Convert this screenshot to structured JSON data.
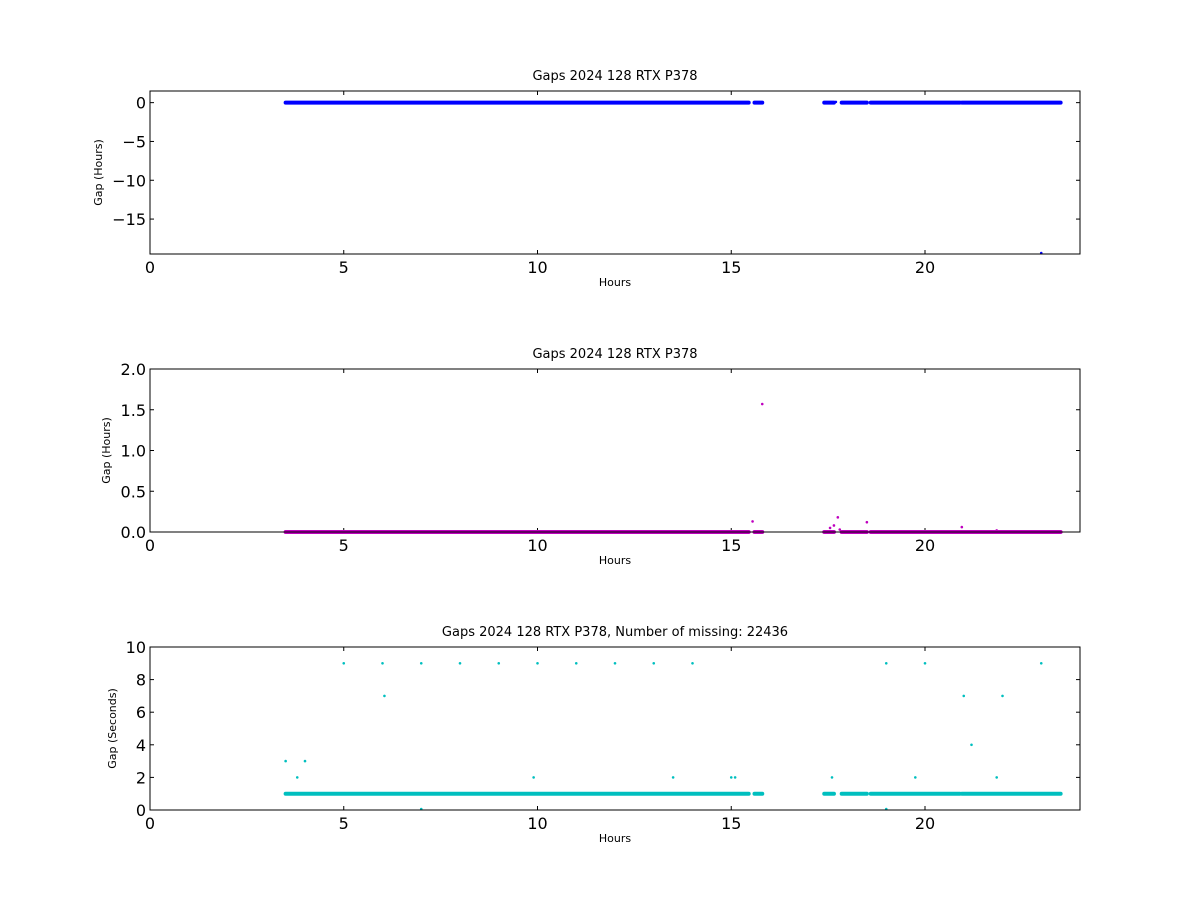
{
  "chart_data": [
    {
      "type": "scatter",
      "title": "Gaps 2024 128 RTX  P378",
      "xlabel": "Hours",
      "ylabel": "Gap (Hours)",
      "xlim": [
        0,
        24
      ],
      "ylim": [
        -19.5,
        1.5
      ],
      "xticks": [
        0,
        5,
        10,
        15,
        20
      ],
      "yticks": [
        0,
        -5,
        -10,
        -15
      ],
      "color": "#0000ff",
      "series": [
        {
          "segments": [
            [
              3.5,
              15.45
            ],
            [
              15.6,
              15.8
            ],
            [
              17.4,
              17.65
            ],
            [
              17.85,
              18.5
            ],
            [
              18.6,
              20.9
            ],
            [
              20.95,
              23.5
            ]
          ],
          "y": 0.0,
          "points": [
            [
              17.7,
              0.1
            ],
            [
              23.0,
              -19.5
            ]
          ]
        }
      ]
    },
    {
      "type": "scatter",
      "title": "Gaps 2024 128 RTX  P378",
      "xlabel": "Hours",
      "ylabel": "Gap (Hours)",
      "xlim": [
        0,
        24
      ],
      "ylim": [
        0.0,
        2.0
      ],
      "xticks": [
        0,
        5,
        10,
        15,
        20
      ],
      "yticks": [
        0.0,
        0.5,
        1.0,
        1.5,
        2.0
      ],
      "color": "#bf00bf",
      "series": [
        {
          "segments": [
            [
              3.5,
              15.45
            ],
            [
              15.6,
              15.8
            ],
            [
              17.4,
              17.65
            ],
            [
              17.85,
              18.5
            ],
            [
              18.6,
              23.5
            ]
          ],
          "y": 0.0,
          "points": [
            [
              15.55,
              0.13
            ],
            [
              15.8,
              1.57
            ],
            [
              17.55,
              0.05
            ],
            [
              17.65,
              0.08
            ],
            [
              17.75,
              0.18
            ],
            [
              17.8,
              0.03
            ],
            [
              18.5,
              0.12
            ],
            [
              20.95,
              0.06
            ],
            [
              21.85,
              0.02
            ]
          ]
        }
      ]
    },
    {
      "type": "scatter",
      "title": "Gaps 2024 128 RTX  P378, Number of missing: 22436",
      "xlabel": "Hours",
      "ylabel": "Gap (Seconds)",
      "xlim": [
        0,
        24
      ],
      "ylim": [
        0,
        10
      ],
      "xticks": [
        0,
        5,
        10,
        15,
        20
      ],
      "yticks": [
        0,
        2,
        4,
        6,
        8,
        10
      ],
      "color": "#00bfbf",
      "series": [
        {
          "segments": [
            [
              3.5,
              15.45
            ],
            [
              15.6,
              15.8
            ],
            [
              17.4,
              17.65
            ],
            [
              17.85,
              18.5
            ],
            [
              18.6,
              20.9
            ],
            [
              20.95,
              23.5
            ]
          ],
          "y": 1,
          "points": [
            [
              3.5,
              3
            ],
            [
              3.8,
              2
            ],
            [
              4.0,
              3
            ],
            [
              5.0,
              9
            ],
            [
              6.0,
              9
            ],
            [
              6.05,
              7
            ],
            [
              7.0,
              9
            ],
            [
              7.0,
              0
            ],
            [
              8.0,
              9
            ],
            [
              9.0,
              9
            ],
            [
              9.9,
              2
            ],
            [
              10.0,
              9
            ],
            [
              11.0,
              9
            ],
            [
              12.0,
              9
            ],
            [
              13.0,
              9
            ],
            [
              13.5,
              2
            ],
            [
              14.0,
              9
            ],
            [
              15.0,
              2
            ],
            [
              15.1,
              2
            ],
            [
              17.6,
              2
            ],
            [
              19.0,
              9
            ],
            [
              19.0,
              0
            ],
            [
              19.75,
              2
            ],
            [
              20.0,
              9
            ],
            [
              21.0,
              7
            ],
            [
              21.2,
              4
            ],
            [
              21.85,
              2
            ],
            [
              22.0,
              7
            ],
            [
              23.0,
              9
            ]
          ]
        }
      ]
    }
  ]
}
